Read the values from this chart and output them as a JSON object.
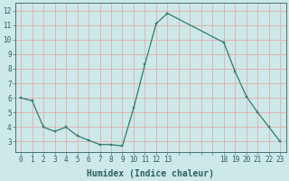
{
  "x": [
    0,
    1,
    2,
    3,
    4,
    5,
    6,
    7,
    8,
    9,
    10,
    11,
    12,
    13,
    18,
    19,
    20,
    21,
    22,
    23
  ],
  "y": [
    6.0,
    5.8,
    4.0,
    3.7,
    4.0,
    3.4,
    3.1,
    2.8,
    2.8,
    2.7,
    5.3,
    8.3,
    11.1,
    11.8,
    9.8,
    7.8,
    6.1,
    5.0,
    4.0,
    3.0
  ],
  "xlabel": "Humidex (Indice chaleur)",
  "line_color": "#2e7d6e",
  "marker_color": "#2e7d6e",
  "bg_color": "#cce8e8",
  "grid_color": "#e8a0a0",
  "axis_color": "#2e6060",
  "xlim": [
    -0.5,
    23.5
  ],
  "ylim": [
    2.3,
    12.5
  ],
  "xtick_positions": [
    0,
    1,
    2,
    3,
    4,
    5,
    6,
    7,
    8,
    9,
    10,
    11,
    12,
    13,
    14,
    15,
    16,
    17,
    18,
    19,
    20,
    21,
    22,
    23
  ],
  "xtick_labels": [
    "0",
    "1",
    "2",
    "3",
    "4",
    "5",
    "6",
    "7",
    "8",
    "9",
    "10",
    "11",
    "12",
    "13",
    "",
    "",
    "",
    "",
    "18",
    "19",
    "20",
    "21",
    "22",
    "23"
  ],
  "yticks": [
    3,
    4,
    5,
    6,
    7,
    8,
    9,
    10,
    11,
    12
  ],
  "tick_fontsize": 5.5,
  "xlabel_fontsize": 7.0,
  "xlabel_fontweight": "bold"
}
